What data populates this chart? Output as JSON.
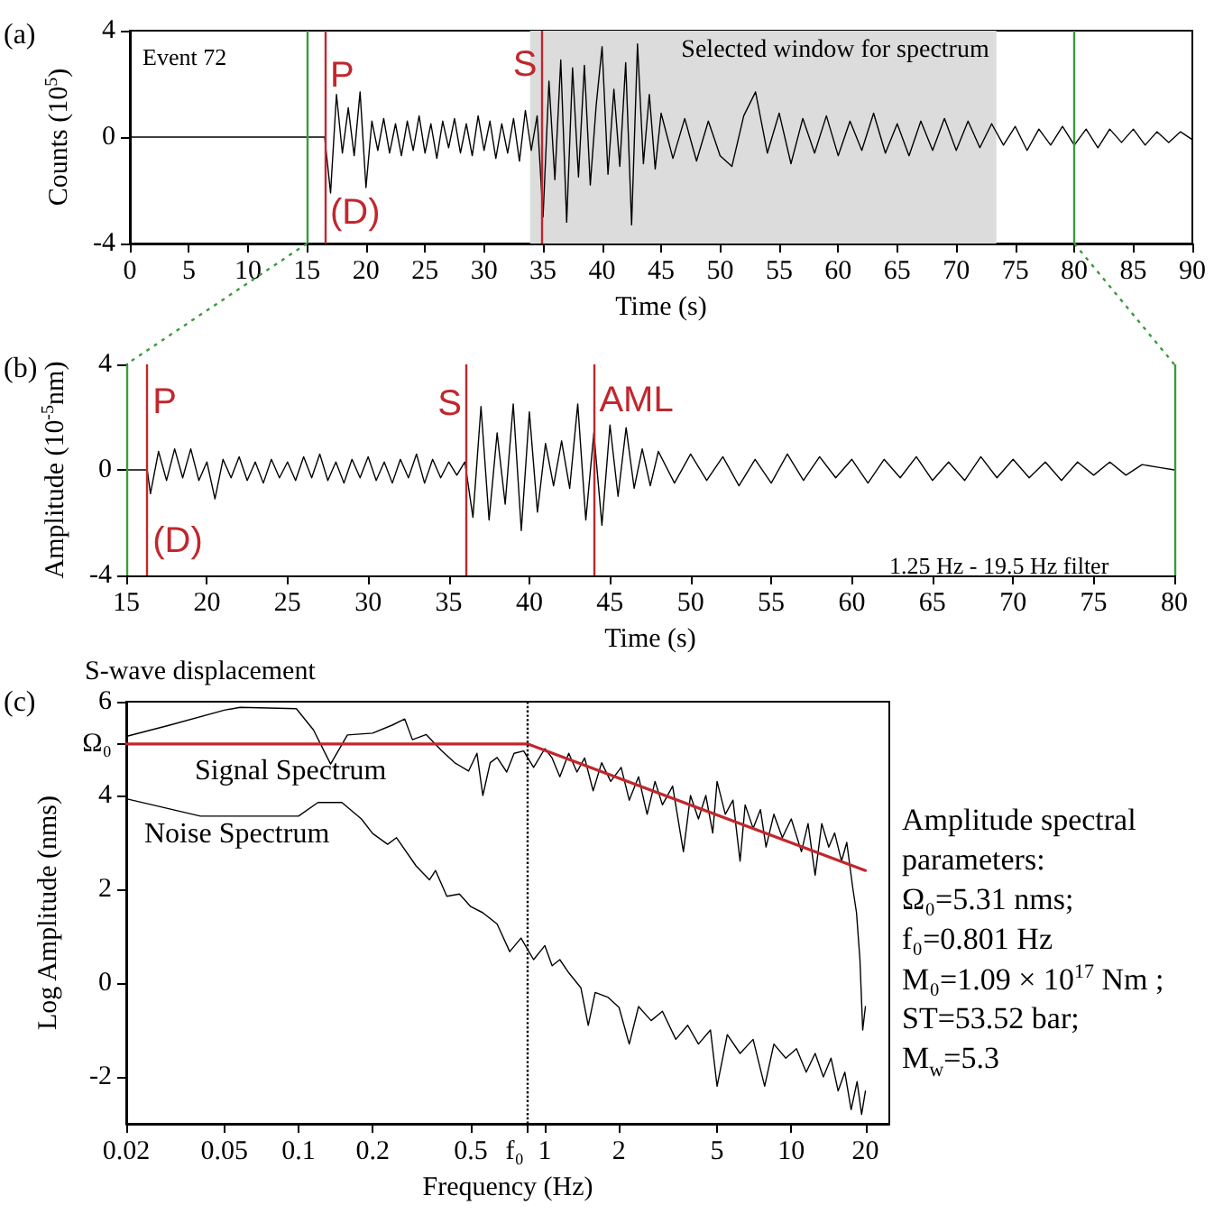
{
  "chart_data": [
    {
      "type": "line",
      "xlabel": "Time (s)",
      "ylabel": "Counts (10$^{5}$)",
      "xlim": [
        0,
        90
      ],
      "xticks": [
        0,
        5,
        10,
        15,
        20,
        25,
        30,
        35,
        40,
        45,
        50,
        55,
        60,
        65,
        70,
        75,
        80,
        85,
        90
      ],
      "ylim": [
        -4,
        4
      ],
      "yticks": [
        -4,
        0,
        4
      ],
      "grid": false,
      "series": [
        {
          "color": "#000000",
          "x": [
            0,
            16.5,
            17,
            17.5,
            18,
            18.5,
            19,
            19.5,
            20,
            20.5,
            21,
            21.5,
            22,
            22.5,
            23,
            23.5,
            24,
            24.5,
            25,
            25.5,
            26,
            26.5,
            27,
            27.5,
            28,
            28.5,
            29,
            29.5,
            30,
            30.5,
            31,
            31.5,
            32,
            32.5,
            33,
            33.5,
            34,
            34.5,
            35,
            35.5,
            36,
            36.5,
            37,
            37.5,
            38,
            38.5,
            39,
            39.5,
            40,
            40.5,
            41,
            41.5,
            42,
            42.5,
            43,
            43.5,
            44,
            44.5,
            45,
            46,
            47,
            48,
            49,
            50,
            51,
            52,
            53,
            54,
            55,
            56,
            57,
            58,
            59,
            60,
            61,
            62,
            63,
            64,
            65,
            66,
            67,
            68,
            69,
            70,
            71,
            72,
            73,
            74,
            75,
            76,
            77,
            78,
            79,
            80,
            81,
            82,
            83,
            84,
            85,
            86,
            87,
            88,
            89,
            90
          ],
          "values": [
            0,
            0,
            -2.1,
            1.6,
            -0.6,
            1.1,
            -0.7,
            1.7,
            -1.9,
            0.6,
            -0.5,
            0.7,
            -0.6,
            0.5,
            -0.7,
            0.6,
            -0.5,
            0.8,
            -0.6,
            0.5,
            -0.8,
            0.6,
            -0.4,
            0.7,
            -0.6,
            0.5,
            -0.7,
            0.8,
            -0.5,
            0.6,
            -0.8,
            0.5,
            -0.6,
            0.7,
            -0.9,
            1.0,
            -0.5,
            0.8,
            -3.0,
            2.1,
            -1.6,
            2.9,
            -3.2,
            2.6,
            -1.5,
            2.7,
            -1.8,
            1.2,
            3.4,
            -1.4,
            1.8,
            -1.1,
            2.8,
            -3.3,
            3.5,
            -1.0,
            1.6,
            -1.2,
            0.9,
            -0.8,
            0.7,
            -0.9,
            0.6,
            -0.7,
            -1.1,
            0.8,
            1.7,
            -0.6,
            0.9,
            -1.0,
            0.7,
            -0.6,
            0.8,
            -0.7,
            0.6,
            -0.5,
            0.9,
            -0.6,
            0.5,
            -0.7,
            0.6,
            -0.5,
            0.7,
            -0.5,
            0.6,
            -0.4,
            0.5,
            -0.3,
            0.4,
            -0.5,
            0.3,
            -0.3,
            0.4,
            -0.3,
            0.3,
            -0.4,
            0.3,
            -0.2,
            0.3,
            -0.3,
            0.2,
            -0.2,
            0.2,
            -0.1
          ]
        }
      ],
      "bands": [
        {
          "axis": "x",
          "from": 33.9,
          "to": 73.4,
          "label": "Selected window for spectrum",
          "color": "#dcdcdc"
        }
      ],
      "ref_lines": [
        {
          "axis": "x",
          "value": 15,
          "color": "#3c9a3c"
        },
        {
          "axis": "x",
          "value": 80,
          "color": "#3c9a3c"
        },
        {
          "axis": "x",
          "value": 16.5,
          "color": "#c1272d"
        },
        {
          "axis": "x",
          "value": 34.9,
          "color": "#c1272d"
        }
      ],
      "annotations": [
        "(a)",
        "Event 72",
        {
          "text": "P",
          "x": 16.5,
          "y": 2.3
        },
        {
          "text": "(D)",
          "x": 16.5,
          "y": -2.85
        },
        {
          "text": "S",
          "x": 34.9,
          "y": 2.7
        }
      ]
    },
    {
      "type": "line",
      "xlabel": "Time (s)",
      "ylabel": "Amplitude (10$^{-5}$nm)",
      "xlim": [
        15,
        80
      ],
      "xticks": [
        15,
        20,
        25,
        30,
        35,
        40,
        45,
        50,
        55,
        60,
        65,
        70,
        75,
        80
      ],
      "ylim": [
        -4,
        4
      ],
      "yticks": [
        -4,
        0,
        4
      ],
      "grid": false,
      "series": [
        {
          "color": "#000000",
          "x": [
            15,
            16.3,
            16.5,
            17,
            17.5,
            18,
            18.5,
            19,
            19.5,
            20,
            20.5,
            21,
            21.5,
            22,
            22.5,
            23,
            23.5,
            24,
            24.5,
            25,
            25.5,
            26,
            26.5,
            27,
            27.5,
            28,
            28.5,
            29,
            29.5,
            30,
            30.5,
            31,
            31.5,
            32,
            32.5,
            33,
            33.5,
            34,
            34.5,
            35,
            35.5,
            36,
            36.5,
            37,
            37.5,
            38,
            38.5,
            39,
            39.5,
            40,
            40.5,
            41,
            41.5,
            42,
            42.5,
            43,
            43.5,
            44,
            44.5,
            45,
            45.5,
            46,
            46.5,
            47,
            47.5,
            48,
            49,
            50,
            51,
            52,
            53,
            54,
            55,
            56,
            57,
            58,
            59,
            60,
            61,
            62,
            63,
            64,
            65,
            66,
            67,
            68,
            69,
            70,
            71,
            72,
            73,
            74,
            75,
            76,
            77,
            78,
            79,
            80
          ],
          "values": [
            0,
            0,
            -0.9,
            0.7,
            -0.4,
            0.8,
            -0.3,
            0.8,
            -0.4,
            0.3,
            -1.1,
            0.4,
            -0.3,
            0.5,
            -0.4,
            0.3,
            -0.5,
            0.4,
            -0.3,
            0.3,
            -0.4,
            0.5,
            -0.3,
            0.6,
            -0.4,
            0.3,
            -0.5,
            0.4,
            -0.3,
            0.5,
            -0.4,
            0.3,
            -0.5,
            0.4,
            -0.3,
            0.6,
            -0.5,
            0.4,
            -0.3,
            0.3,
            -0.2,
            0.3,
            -1.8,
            2.4,
            -1.9,
            1.4,
            -1.3,
            2.5,
            -2.3,
            2.2,
            -1.6,
            1.0,
            -0.6,
            1.1,
            -0.7,
            2.5,
            -1.9,
            1.4,
            -2.1,
            1.7,
            -1.0,
            1.6,
            -0.7,
            0.8,
            -0.6,
            0.7,
            -0.5,
            0.6,
            -0.4,
            0.5,
            -0.6,
            0.4,
            -0.5,
            0.6,
            -0.4,
            0.5,
            -0.3,
            0.4,
            -0.5,
            0.4,
            -0.3,
            0.5,
            -0.4,
            0.3,
            -0.4,
            0.5,
            -0.3,
            0.4,
            -0.3,
            0.3,
            -0.4,
            0.3,
            -0.2,
            0.3,
            -0.2,
            0.2,
            0.1,
            0
          ]
        }
      ],
      "ref_lines": [
        {
          "axis": "x",
          "value": 15,
          "color": "#3c9a3c"
        },
        {
          "axis": "x",
          "value": 80,
          "color": "#3c9a3c"
        },
        {
          "axis": "x",
          "value": 16.3,
          "color": "#c1272d"
        },
        {
          "axis": "x",
          "value": 36.1,
          "color": "#c1272d"
        },
        {
          "axis": "x",
          "value": 44.0,
          "color": "#c1272d"
        }
      ],
      "annotations": [
        "(b)",
        "1.25 Hz - 19.5 Hz filter",
        {
          "text": "P",
          "x": 16.3,
          "y": 2.55
        },
        {
          "text": "(D)",
          "x": 16.3,
          "y": -2.7
        },
        {
          "text": "S",
          "x": 36.1,
          "y": 2.5
        },
        {
          "text": "AML",
          "x": 44.0,
          "y": 2.6
        }
      ]
    },
    {
      "type": "line",
      "title": "S-wave displacement",
      "xlabel": "Frequency (Hz)",
      "ylabel": "Log Amplitude (nms)",
      "log": "x",
      "xlim": [
        0.02,
        25
      ],
      "xticks": [
        0.02,
        0.05,
        0.1,
        0.2,
        0.5,
        {
          "value": 0.85,
          "label": "f₀"
        },
        1,
        2,
        5,
        10,
        20
      ],
      "ylim": [
        -3,
        6
      ],
      "yticks": [
        -2,
        0,
        2,
        4,
        {
          "value": 5.1,
          "label": "Ω₀"
        },
        6
      ],
      "grid": false,
      "series": [
        {
          "name": "Signal Spectrum",
          "color": "#000000",
          "x": [
            0.02,
            0.03,
            0.05,
            0.058,
            0.098,
            0.115,
            0.135,
            0.158,
            0.2,
            0.24,
            0.27,
            0.29,
            0.33,
            0.38,
            0.43,
            0.49,
            0.53,
            0.56,
            0.6,
            0.64,
            0.7,
            0.75,
            0.82,
            0.9,
            1.0,
            1.07,
            1.15,
            1.25,
            1.35,
            1.45,
            1.57,
            1.7,
            1.85,
            2.04,
            2.2,
            2.4,
            2.6,
            2.8,
            3.0,
            3.3,
            3.65,
            3.9,
            4.2,
            4.5,
            4.8,
            5.0,
            5.4,
            5.8,
            6.2,
            6.5,
            7.0,
            7.5,
            7.9,
            8.5,
            9.2,
            10,
            11,
            11.7,
            12.5,
            13.3,
            14.2,
            15,
            16,
            16.8,
            17.8,
            18.4,
            19,
            19.5,
            20
          ],
          "values": [
            5.26,
            5.5,
            5.82,
            5.88,
            5.85,
            5.4,
            4.67,
            5.29,
            5.33,
            5.5,
            5.63,
            5.19,
            5.3,
            4.96,
            4.7,
            4.52,
            4.9,
            4.0,
            4.7,
            4.81,
            4.5,
            4.9,
            4.95,
            4.6,
            5.0,
            4.8,
            4.4,
            4.9,
            4.5,
            4.8,
            4.1,
            4.7,
            4.3,
            4.6,
            3.9,
            4.4,
            3.6,
            4.3,
            3.8,
            4.2,
            2.8,
            4.0,
            3.5,
            4.0,
            3.2,
            4.3,
            3.6,
            3.9,
            2.6,
            3.8,
            3.3,
            3.7,
            2.9,
            3.6,
            3.1,
            3.5,
            2.8,
            3.4,
            2.3,
            3.4,
            2.9,
            3.2,
            2.6,
            3.0,
            2.0,
            1.5,
            0.5,
            -1.0,
            -0.5
          ]
        },
        {
          "name": "Noise Spectrum",
          "color": "#000000",
          "x": [
            0.02,
            0.04,
            0.1,
            0.12,
            0.15,
            0.18,
            0.2,
            0.23,
            0.25,
            0.3,
            0.34,
            0.36,
            0.4,
            0.45,
            0.5,
            0.56,
            0.64,
            0.72,
            0.8,
            0.9,
            1.0,
            1.07,
            1.15,
            1.25,
            1.4,
            1.5,
            1.6,
            1.8,
            2.0,
            2.2,
            2.4,
            2.7,
            3.0,
            3.4,
            3.8,
            4.2,
            4.7,
            5.0,
            5.5,
            6.2,
            7,
            7.8,
            8.5,
            9.5,
            10.5,
            11.5,
            12.5,
            13.5,
            14.5,
            15.5,
            16.5,
            17.5,
            18.5,
            19.3,
            20
          ],
          "values": [
            3.93,
            3.56,
            3.56,
            3.85,
            3.85,
            3.5,
            3.19,
            2.96,
            3.1,
            2.5,
            2.2,
            2.4,
            1.85,
            1.9,
            1.63,
            1.5,
            1.26,
            0.67,
            0.96,
            0.5,
            0.8,
            0.37,
            0.5,
            0.22,
            -0.1,
            -0.9,
            -0.2,
            -0.3,
            -0.52,
            -1.3,
            -0.5,
            -0.8,
            -0.6,
            -1.2,
            -0.9,
            -1.3,
            -1.0,
            -2.2,
            -1.1,
            -1.5,
            -1.2,
            -2.2,
            -1.3,
            -1.6,
            -1.4,
            -1.9,
            -1.5,
            -2.0,
            -1.6,
            -2.3,
            -1.9,
            -2.7,
            -2.1,
            -2.8,
            -2.3
          ]
        },
        {
          "type": "line",
          "color": "#c1272d",
          "x": [
            0.02,
            0.85,
            20
          ],
          "values": [
            5.1,
            5.1,
            2.4
          ]
        }
      ],
      "ref_lines": [
        {
          "axis": "x",
          "value": 0.85,
          "color": "#000000",
          "line_style": "dotted"
        }
      ],
      "annotations": [
        "(c)",
        "Amplitude spectral",
        "parameters:",
        "Ω₀=5.31 nms;",
        "f₀=0.801 Hz",
        "M₀=1.09 × 10$^{17}$ Nm ;",
        "ST=53.52 bar;",
        "M$_{w}$=5.3"
      ]
    }
  ]
}
